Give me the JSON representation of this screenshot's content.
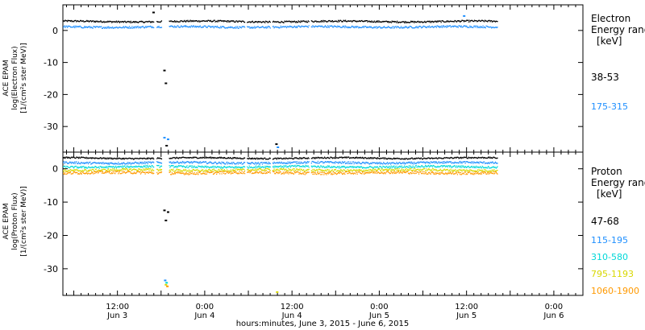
{
  "chart_data": [
    {
      "type": "scatter",
      "instrument": "ACE EPAM",
      "ylabel": [
        "ACE EPAM",
        "log(Electron Flux)",
        "[1/(cm²s ster MeV)]"
      ],
      "ylim": [
        -38,
        8
      ],
      "yticks": [
        0,
        -10,
        -20,
        -30
      ],
      "legend_title": [
        "Electron",
        "Energy ranges",
        "[keV]"
      ],
      "series": [
        {
          "name": "38-53",
          "color": "#000000",
          "base": 2.8,
          "noise": 0.25
        },
        {
          "name": "175-315",
          "color": "#1e8fff",
          "base": 1.1,
          "noise": 0.3
        }
      ],
      "outliers": [
        {
          "x": 18.3,
          "y": -12.5,
          "color": "#000000"
        },
        {
          "x": 18.5,
          "y": -16.5,
          "color": "#000000"
        },
        {
          "x": 18.3,
          "y": -33.5,
          "color": "#1e8fff"
        },
        {
          "x": 18.8,
          "y": -34.0,
          "color": "#1e8fff"
        },
        {
          "x": 18.6,
          "y": -36.0,
          "color": "#000000"
        },
        {
          "x": 33.7,
          "y": -35.5,
          "color": "#000000"
        },
        {
          "x": 33.9,
          "y": -36.5,
          "color": "#1e8fff"
        },
        {
          "x": 16.8,
          "y": 5.6,
          "color": "#000000"
        },
        {
          "x": 59.5,
          "y": 4.5,
          "color": "#1e8fff"
        }
      ]
    },
    {
      "type": "scatter",
      "instrument": "ACE EPAM",
      "ylabel": [
        "ACE EPAM",
        "log(Proton Flux)",
        "[1/(cm²s ster MeV)]"
      ],
      "ylim": [
        -38,
        5
      ],
      "yticks": [
        0,
        -10,
        -20,
        -30
      ],
      "legend_title": [
        "Proton",
        "Energy ranges",
        "[keV]"
      ],
      "series": [
        {
          "name": "47-68",
          "color": "#000000",
          "base": 3.2,
          "noise": 0.2
        },
        {
          "name": "115-195",
          "color": "#1e8fff",
          "base": 1.8,
          "noise": 0.3
        },
        {
          "name": "310-580",
          "color": "#00d8d8",
          "base": 0.6,
          "noise": 0.3
        },
        {
          "name": "795-1193",
          "color": "#d8d800",
          "base": -0.4,
          "noise": 0.35
        },
        {
          "name": "1060-1900",
          "color": "#ff9900",
          "base": -1.2,
          "noise": 0.4
        }
      ],
      "outliers": [
        {
          "x": 18.3,
          "y": -12.5,
          "color": "#000000"
        },
        {
          "x": 18.8,
          "y": -13.0,
          "color": "#000000"
        },
        {
          "x": 18.5,
          "y": -15.5,
          "color": "#000000"
        },
        {
          "x": 18.4,
          "y": -33.5,
          "color": "#1e8fff"
        },
        {
          "x": 18.6,
          "y": -34.2,
          "color": "#00d8d8"
        },
        {
          "x": 18.5,
          "y": -34.8,
          "color": "#d8d800"
        },
        {
          "x": 18.7,
          "y": -35.3,
          "color": "#ff9900"
        },
        {
          "x": 33.8,
          "y": -37.0,
          "color": "#d8d800"
        }
      ]
    }
  ],
  "x_axis": {
    "xlim": [
      4.5,
      76
    ],
    "data_range": [
      4.5,
      64.2
    ],
    "xlabel": "hours:minutes, June  3, 2015 - June  6, 2015",
    "tick_labels": [
      {
        "x": 12,
        "time": "12:00",
        "date": "Jun 3"
      },
      {
        "x": 24,
        "time": "0:00",
        "date": "Jun 4"
      },
      {
        "x": 36,
        "time": "12:00",
        "date": "Jun 4"
      },
      {
        "x": 48,
        "time": "0:00",
        "date": "Jun 5"
      },
      {
        "x": 60,
        "time": "12:00",
        "date": "Jun 5"
      },
      {
        "x": 72,
        "time": "0:00",
        "date": "Jun 6"
      }
    ],
    "gaps": [
      [
        17.0,
        17.3
      ],
      [
        18.0,
        19.0
      ],
      [
        29.5,
        29.7
      ],
      [
        33.0,
        33.3
      ],
      [
        38.3,
        38.6
      ]
    ]
  }
}
